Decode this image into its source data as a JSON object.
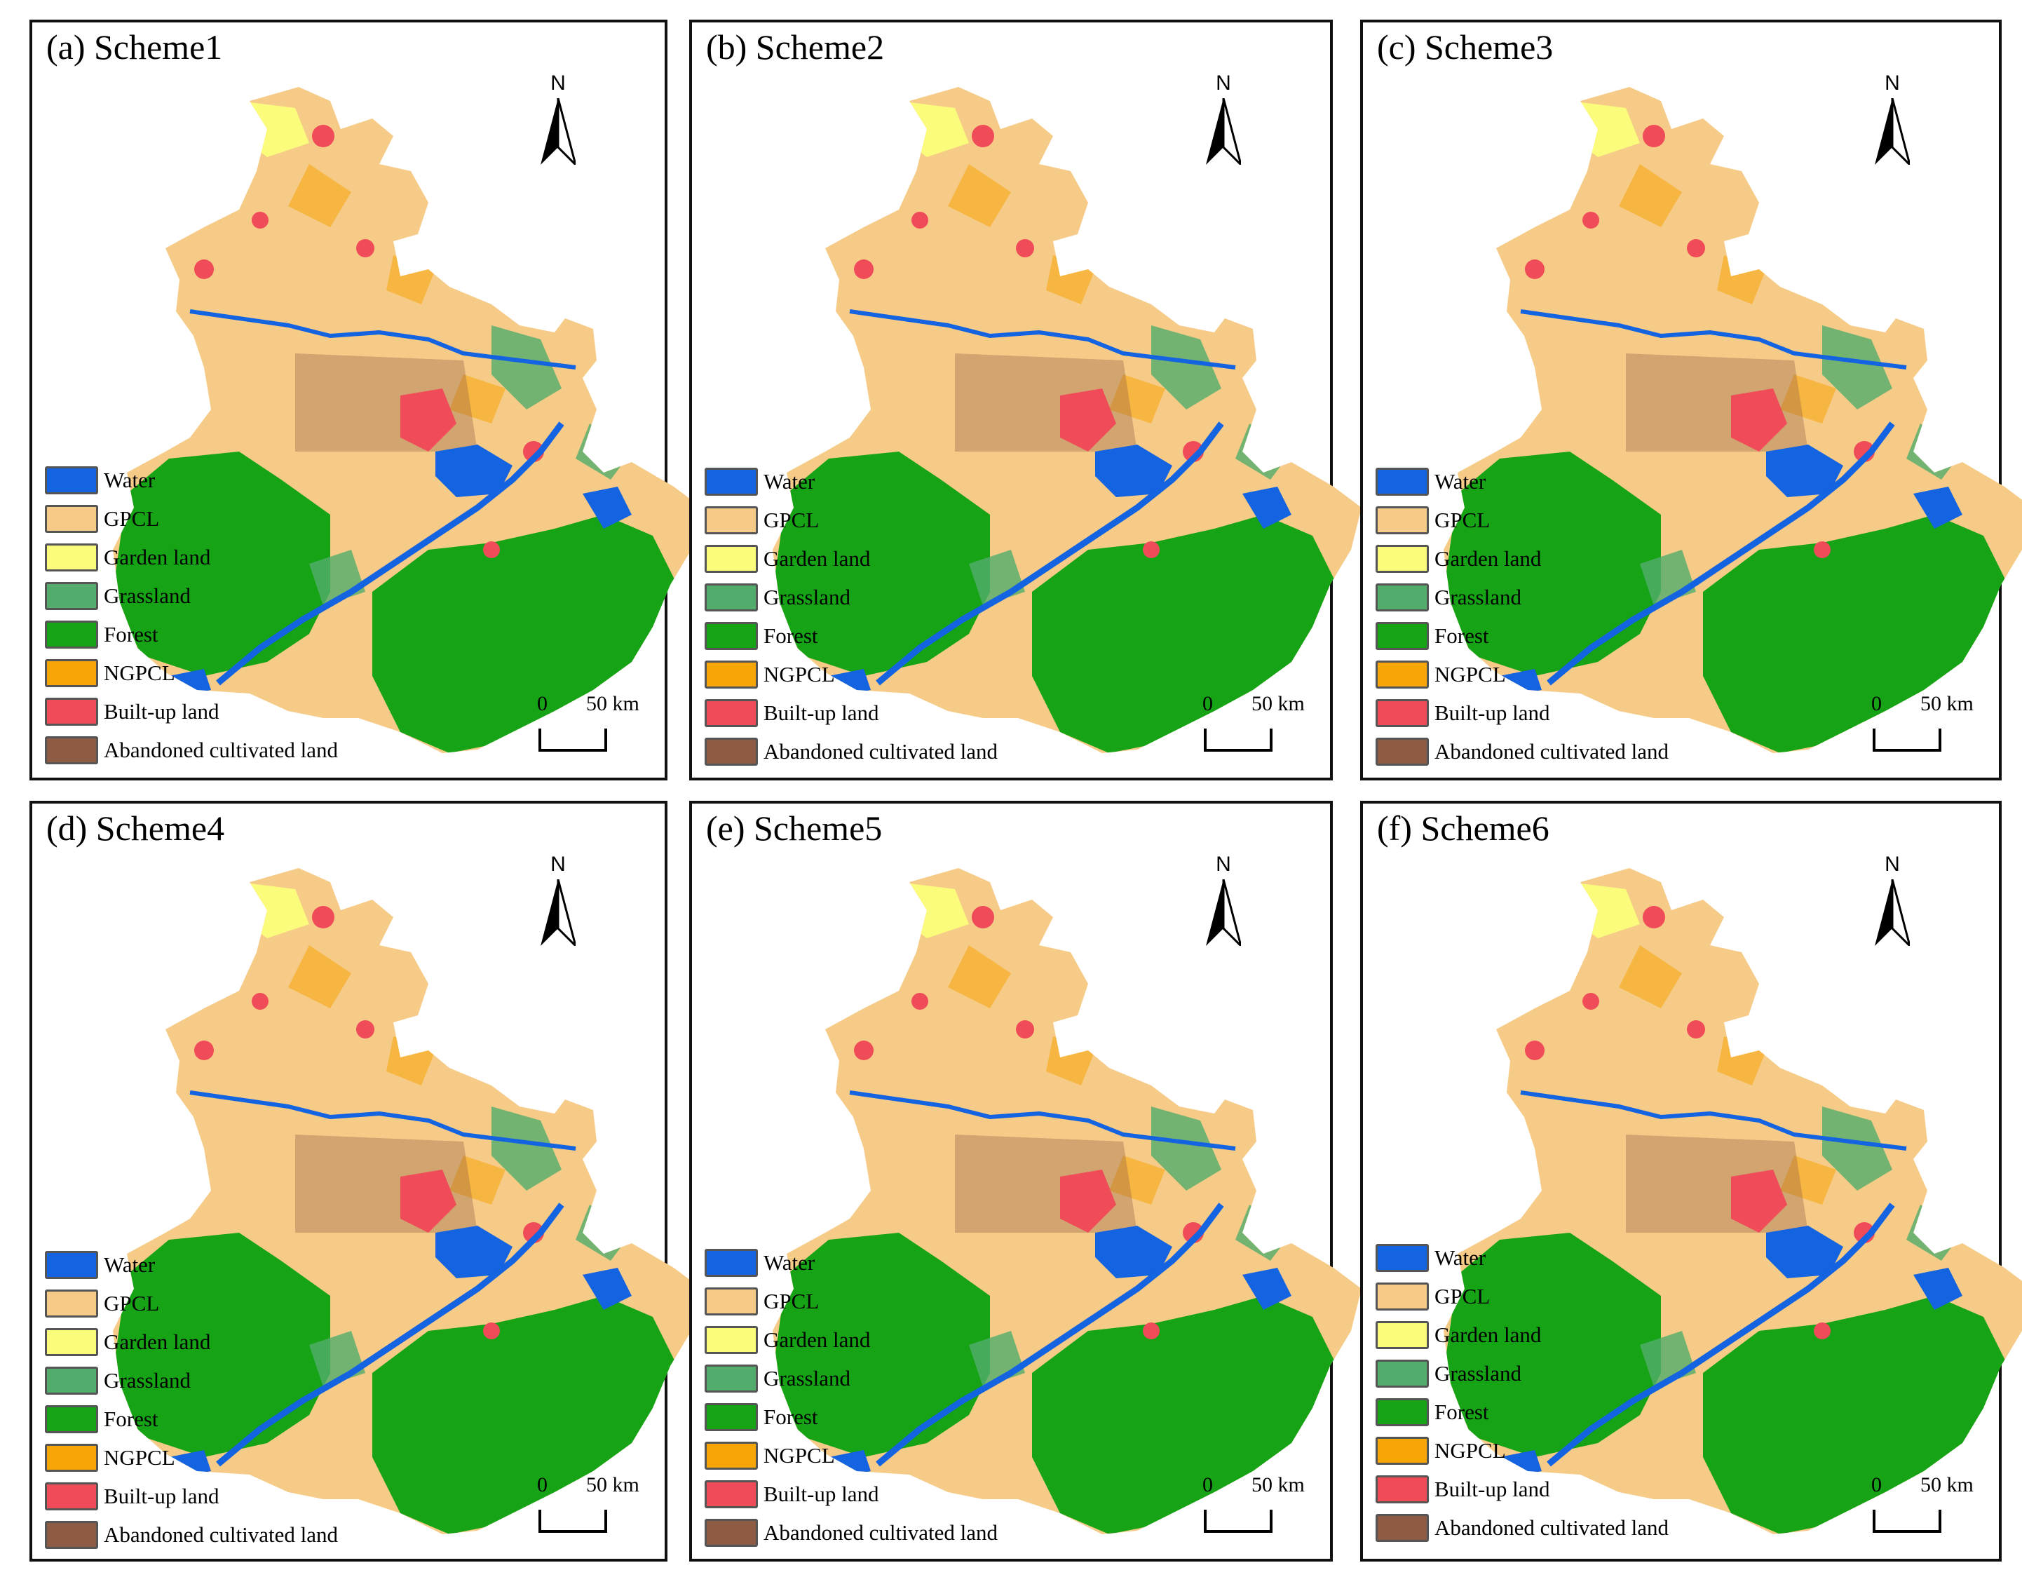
{
  "colors": {
    "water": "#1463e0",
    "gpcl": "#f6cb88",
    "garden": "#fbfb7c",
    "grassland": "#52ad6c",
    "forest": "#16a316",
    "ngpcl": "#f7a608",
    "builtup": "#ef4b58",
    "abandoned": "#8e5b45"
  },
  "north_label": "N",
  "scale": {
    "zero": "0",
    "distance": "50 km"
  },
  "legend": [
    {
      "label": "Water",
      "color": "#1463e0"
    },
    {
      "label": "GPCL",
      "color": "#f6cb88"
    },
    {
      "label": "Garden land",
      "color": "#fbfb7c"
    },
    {
      "label": "Grassland",
      "color": "#52ad6c"
    },
    {
      "label": "Forest",
      "color": "#16a316"
    },
    {
      "label": "NGPCL",
      "color": "#f7a608"
    },
    {
      "label": "Built-up land",
      "color": "#ef4b58"
    },
    {
      "label": "Abandoned cultivated land",
      "color": "#8e5b45"
    }
  ],
  "panels": [
    {
      "title": "(a) Scheme1"
    },
    {
      "title": "(b) Scheme2"
    },
    {
      "title": "(c) Scheme3"
    },
    {
      "title": "(d) Scheme4"
    },
    {
      "title": "(e) Scheme5"
    },
    {
      "title": "(f) Scheme6"
    }
  ]
}
